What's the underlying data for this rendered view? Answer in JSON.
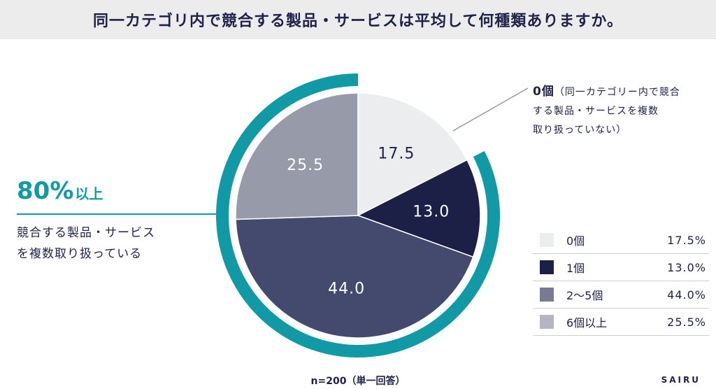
{
  "title": "同一カテゴリ内で競合する製品・サービスは平均して何種類ありますか。",
  "chart_data": {
    "type": "pie",
    "categories": [
      "0個",
      "1個",
      "2〜5個",
      "6個以上"
    ],
    "values": [
      17.5,
      13.0,
      44.0,
      25.5
    ],
    "data_labels": [
      "17.5",
      "13.0",
      "44.0",
      "25.5"
    ],
    "legend_values": [
      "17.5%",
      "13.0%",
      "44.0%",
      "25.5%"
    ],
    "colors": [
      "#ebedef",
      "#1c1f46",
      "#434a6d",
      "#979aa8"
    ],
    "label_colors": [
      "#1e2148",
      "#ffffff",
      "#ffffff",
      "#ffffff"
    ],
    "legend_colors": [
      "#ebedef",
      "#1c1f46",
      "#777a92",
      "#b3b5c2"
    ],
    "highlight_ring_color": "#119aa6",
    "legend_placement": "right"
  },
  "callout": {
    "value": "80%",
    "suffix": "以上",
    "line1": "競合する製品・サービス",
    "line2": "を複数取り扱っている"
  },
  "annotation": {
    "head": "0個",
    "line1": "（同一カテゴリー内で競合",
    "line2": "する製品・サービスを複数",
    "line3": "取り扱っていない）"
  },
  "footnote": "n=200（単一回答）",
  "brand": "SAIRU"
}
